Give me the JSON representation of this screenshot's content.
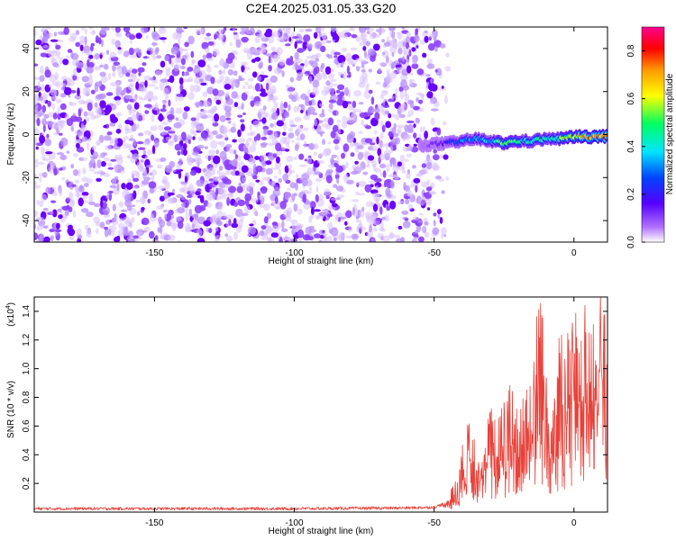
{
  "title": "C2E4.2025.031.05.33.G20",
  "chart_data": [
    {
      "type": "heatmap",
      "xlabel": "Height of straight line (km)",
      "ylabel": "Frequency (Hz)",
      "xlim": [
        -193,
        12
      ],
      "ylim": [
        -50,
        50
      ],
      "x_ticks": [
        -150,
        -100,
        -50,
        0
      ],
      "y_ticks": [
        -40,
        -20,
        0,
        20,
        40
      ],
      "colorbar": {
        "label": "Normalized spectral amplitude",
        "range": [
          0.0,
          0.9
        ],
        "ticks": [
          0.0,
          0.2,
          0.4,
          0.6,
          0.8
        ],
        "colors": [
          "#ffffff",
          "#b070ff",
          "#5500ff",
          "#0044ff",
          "#00e5ff",
          "#00ff60",
          "#ffff00",
          "#ff9900",
          "#ff0000",
          "#ff0090"
        ]
      },
      "noise_region": {
        "x_range": [
          -193,
          -45
        ],
        "y_range": [
          -50,
          50
        ],
        "typical_amplitude": 0.05
      },
      "signal_band": {
        "x": [
          -55,
          -45,
          -40,
          -35,
          -30,
          -25,
          -20,
          -15,
          -10,
          -5,
          0,
          5,
          12
        ],
        "y_center": [
          -5,
          -4,
          -3,
          -2,
          -3,
          -4,
          -3,
          -3,
          -2,
          -2,
          -1,
          -1,
          -1
        ],
        "amplitude": [
          0.05,
          0.2,
          0.3,
          0.35,
          0.4,
          0.55,
          0.45,
          0.4,
          0.45,
          0.5,
          0.65,
          0.75,
          0.85
        ]
      }
    },
    {
      "type": "line",
      "xlabel": "Height of straight line (km)",
      "ylabel": "SNR (10 * v/v)",
      "multiplier_label": "(x10",
      "multiplier_exp": "4",
      "multiplier_close": ")",
      "xlim": [
        -193,
        12
      ],
      "ylim": [
        0,
        1.5
      ],
      "x_ticks": [
        -150,
        -100,
        -50,
        0
      ],
      "y_ticks": [
        0.2,
        0.4,
        0.6,
        0.8,
        1.0,
        1.2,
        1.4
      ],
      "line_color": "#e8423a",
      "series": [
        {
          "x": [
            -193,
            -150,
            -100,
            -60,
            -50,
            -47,
            -44,
            -42,
            -40,
            -38,
            -35,
            -32,
            -30,
            -28,
            -25,
            -22,
            -20,
            -18,
            -15,
            -12,
            -10,
            -8,
            -5,
            -3,
            0,
            3,
            5,
            8,
            10,
            12
          ],
          "values": [
            0.02,
            0.02,
            0.02,
            0.025,
            0.03,
            0.05,
            0.12,
            0.2,
            0.35,
            0.55,
            0.45,
            0.4,
            0.6,
            0.5,
            0.62,
            0.72,
            0.55,
            0.8,
            0.75,
            1.35,
            0.9,
            0.65,
            1.0,
            0.95,
            1.1,
            1.05,
            1.18,
            1.28,
            1.47,
            0.8
          ]
        }
      ]
    }
  ]
}
